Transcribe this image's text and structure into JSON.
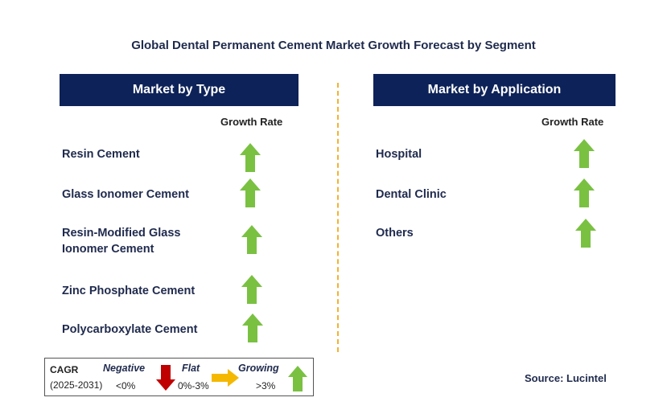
{
  "title": "Global Dental Permanent Cement Market Growth Forecast by Segment",
  "left_panel": {
    "header": "Market by Type",
    "growth_label": "Growth Rate",
    "items": [
      {
        "label": "Resin Cement",
        "trend": "growing"
      },
      {
        "label": "Glass Ionomer Cement",
        "trend": "growing"
      },
      {
        "label_line1": "Resin-Modified Glass",
        "label_line2": "Ionomer Cement",
        "trend": "growing"
      },
      {
        "label": "Zinc Phosphate Cement",
        "trend": "growing"
      },
      {
        "label": "Polycarboxylate Cement",
        "trend": "growing"
      }
    ]
  },
  "right_panel": {
    "header": "Market by Application",
    "growth_label": "Growth Rate",
    "items": [
      {
        "label": "Hospital",
        "trend": "growing"
      },
      {
        "label": "Dental Clinic",
        "trend": "growing"
      },
      {
        "label": "Others",
        "trend": "growing"
      }
    ]
  },
  "legend": {
    "cagr": "CAGR",
    "period": "(2025-2031)",
    "negative": {
      "label": "Negative",
      "range": "<0%",
      "color": "#c00000"
    },
    "flat": {
      "label": "Flat",
      "range": "0%-3%",
      "color": "#f5b800"
    },
    "growing": {
      "label": "Growing",
      "range": ">3%",
      "color": "#7ac142"
    }
  },
  "source": "Source: Lucintel",
  "colors": {
    "header_bg": "#0d2258",
    "up_arrow": "#7ac142",
    "divider": "#f2b233"
  }
}
